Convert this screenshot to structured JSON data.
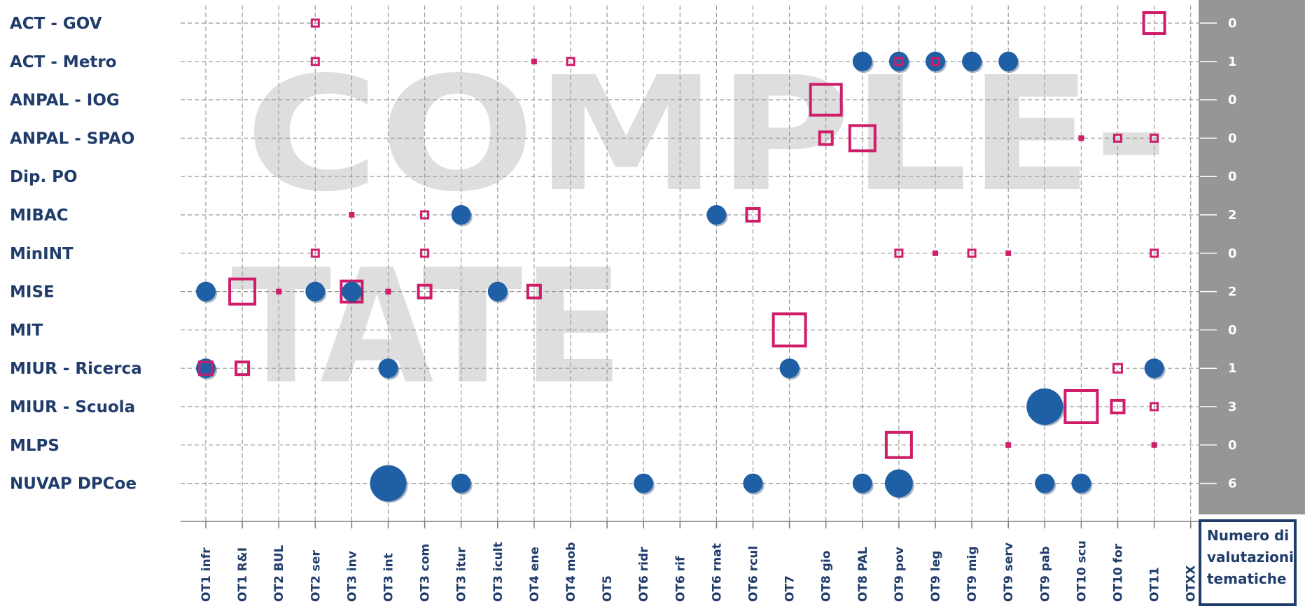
{
  "chart_data": {
    "type": "bubble-matrix",
    "watermark_lines": [
      "COMPLE-",
      "TATE"
    ],
    "rows": [
      "ACT - GOV",
      "ACT - Metro",
      "ANPAL - IOG",
      "ANPAL - SPAO",
      "Dip. PO",
      "MIBAC",
      "MinINT",
      "MISE",
      "MIT",
      "MIUR - Ricerca",
      "MIUR - Scuola",
      "MLPS",
      "NUVAP DPCoe"
    ],
    "columns": [
      "OT1 infr",
      "OT1 R&I",
      "OT2 BUL",
      "OT2 ser",
      "OT3 inv",
      "OT3 int",
      "OT3 com",
      "OT3 itur",
      "OT3 icult",
      "OT4 ene",
      "OT4 mob",
      "OT5",
      "OT6 ridr",
      "OT6 rif",
      "OT6 rnat",
      "OT6 rcul",
      "OT7",
      "OT8 gio",
      "OT8 PAL",
      "OT9 pov",
      "OT9 leg",
      "OT9 mig",
      "OT9 serv",
      "OT9 pab",
      "OT10 scu",
      "OT10 for",
      "OT11",
      "OTXX"
    ],
    "counts": [
      0,
      1,
      0,
      0,
      0,
      2,
      0,
      2,
      0,
      1,
      3,
      0,
      6
    ],
    "counts_title": "Numero di\nvalutazioni\ntematiche",
    "colors": {
      "completed": "#1f5fa6",
      "ongoing": "#cf1d6a",
      "label": "#1f3c6b",
      "count_panel": "#969696",
      "watermark": "#d9d9d9"
    },
    "circles": [
      {
        "row": "ACT - Metro",
        "col": "OT8 PAL",
        "size": 1
      },
      {
        "row": "ACT - Metro",
        "col": "OT9 pov",
        "size": 1
      },
      {
        "row": "ACT - Metro",
        "col": "OT9 leg",
        "size": 1
      },
      {
        "row": "ACT - Metro",
        "col": "OT9 mig",
        "size": 1
      },
      {
        "row": "ACT - Metro",
        "col": "OT9 serv",
        "size": 1
      },
      {
        "row": "MIBAC",
        "col": "OT3 itur",
        "size": 1
      },
      {
        "row": "MIBAC",
        "col": "OT6 rnat",
        "size": 1
      },
      {
        "row": "MISE",
        "col": "OT1 infr",
        "size": 1
      },
      {
        "row": "MISE",
        "col": "OT2 ser",
        "size": 1
      },
      {
        "row": "MISE",
        "col": "OT3 inv",
        "size": 1
      },
      {
        "row": "MISE",
        "col": "OT3 icult",
        "size": 1
      },
      {
        "row": "MIUR - Ricerca",
        "col": "OT1 infr",
        "size": 1
      },
      {
        "row": "MIUR - Ricerca",
        "col": "OT3 int",
        "size": 1
      },
      {
        "row": "MIUR - Ricerca",
        "col": "OT7",
        "size": 1
      },
      {
        "row": "MIUR - Ricerca",
        "col": "OT11",
        "size": 1
      },
      {
        "row": "MIUR - Scuola",
        "col": "OT9 pab",
        "size": 5
      },
      {
        "row": "NUVAP DPCoe",
        "col": "OT3 int",
        "size": 5
      },
      {
        "row": "NUVAP DPCoe",
        "col": "OT3 itur",
        "size": 1
      },
      {
        "row": "NUVAP DPCoe",
        "col": "OT6 ridr",
        "size": 1
      },
      {
        "row": "NUVAP DPCoe",
        "col": "OT6 rcul",
        "size": 1
      },
      {
        "row": "NUVAP DPCoe",
        "col": "OT8 PAL",
        "size": 1
      },
      {
        "row": "NUVAP DPCoe",
        "col": "OT9 pov",
        "size": 3
      },
      {
        "row": "NUVAP DPCoe",
        "col": "OT9 pab",
        "size": 1
      },
      {
        "row": "NUVAP DPCoe",
        "col": "OT10 scu",
        "size": 1
      }
    ],
    "squares": [
      {
        "row": "ACT - GOV",
        "col": "OT2 ser",
        "size": 1
      },
      {
        "row": "ACT - GOV",
        "col": "OT11",
        "size": 4
      },
      {
        "row": "ACT - Metro",
        "col": "OT2 ser",
        "size": 1
      },
      {
        "row": "ACT - Metro",
        "col": "OT4 ene",
        "size": 0
      },
      {
        "row": "ACT - Metro",
        "col": "OT4 mob",
        "size": 1
      },
      {
        "row": "ACT - Metro",
        "col": "OT9 pov",
        "size": 1
      },
      {
        "row": "ACT - Metro",
        "col": "OT9 leg",
        "size": 1
      },
      {
        "row": "ANPAL - IOG",
        "col": "OT8 gio",
        "size": 6
      },
      {
        "row": "ANPAL - SPAO",
        "col": "OT8 gio",
        "size": 3
      },
      {
        "row": "ANPAL - SPAO",
        "col": "OT8 PAL",
        "size": 5
      },
      {
        "row": "ANPAL - SPAO",
        "col": "OT10 scu",
        "size": 0
      },
      {
        "row": "ANPAL - SPAO",
        "col": "OT10 for",
        "size": 1
      },
      {
        "row": "ANPAL - SPAO",
        "col": "OT11",
        "size": 1
      },
      {
        "row": "MIBAC",
        "col": "OT3 inv",
        "size": 0
      },
      {
        "row": "MIBAC",
        "col": "OT3 com",
        "size": 1
      },
      {
        "row": "MIBAC",
        "col": "OT6 rcul",
        "size": 3
      },
      {
        "row": "MinINT",
        "col": "OT2 ser",
        "size": 1
      },
      {
        "row": "MinINT",
        "col": "OT3 com",
        "size": 1
      },
      {
        "row": "MinINT",
        "col": "OT9 pov",
        "size": 1
      },
      {
        "row": "MinINT",
        "col": "OT9 leg",
        "size": 0
      },
      {
        "row": "MinINT",
        "col": "OT9 mig",
        "size": 1
      },
      {
        "row": "MinINT",
        "col": "OT9 serv",
        "size": 0
      },
      {
        "row": "MinINT",
        "col": "OT11",
        "size": 1
      },
      {
        "row": "MISE",
        "col": "OT1 R&I",
        "size": 5
      },
      {
        "row": "MISE",
        "col": "OT2 BUL",
        "size": 0
      },
      {
        "row": "MISE",
        "col": "OT3 inv",
        "size": 4
      },
      {
        "row": "MISE",
        "col": "OT3 int",
        "size": 0
      },
      {
        "row": "MISE",
        "col": "OT3 com",
        "size": 3
      },
      {
        "row": "MISE",
        "col": "OT4 ene",
        "size": 3
      },
      {
        "row": "MIT",
        "col": "OT7",
        "size": 7
      },
      {
        "row": "MIUR - Ricerca",
        "col": "OT1 infr",
        "size": 3
      },
      {
        "row": "MIUR - Ricerca",
        "col": "OT1 R&I",
        "size": 3
      },
      {
        "row": "MIUR - Ricerca",
        "col": "OT10 for",
        "size": 2
      },
      {
        "row": "MIUR - Scuola",
        "col": "OT10 scu",
        "size": 7
      },
      {
        "row": "MIUR - Scuola",
        "col": "OT10 for",
        "size": 3
      },
      {
        "row": "MIUR - Scuola",
        "col": "OT11",
        "size": 1
      },
      {
        "row": "MLPS",
        "col": "OT9 pov",
        "size": 5
      },
      {
        "row": "MLPS",
        "col": "OT9 serv",
        "size": 0
      },
      {
        "row": "MLPS",
        "col": "OT11",
        "size": 0
      }
    ]
  }
}
